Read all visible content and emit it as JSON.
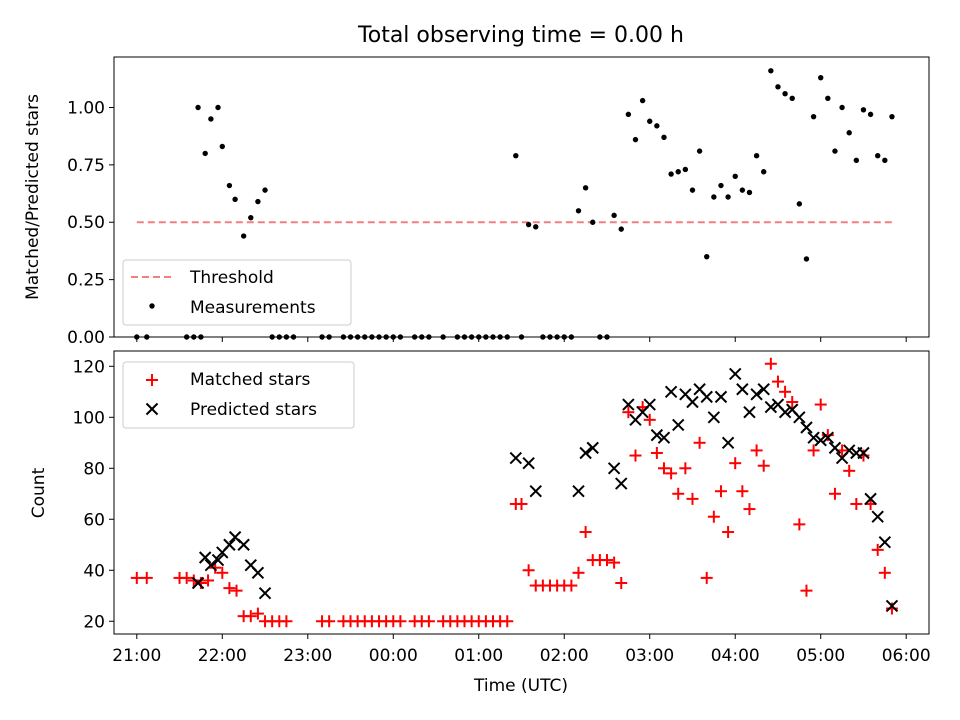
{
  "title": "Total observing time = 0.00 h",
  "xlabel": "Time (UTC)",
  "x_tick_labels": [
    "21:00",
    "22:00",
    "23:00",
    "00:00",
    "01:00",
    "02:00",
    "03:00",
    "04:00",
    "05:00",
    "06:00"
  ],
  "colors": {
    "threshold": "#f08080",
    "measurements": "#000000",
    "matched": "#ff0000",
    "predicted": "#000000"
  },
  "chart_data": [
    {
      "type": "scatter",
      "ylabel": "Matched/Predicted stars",
      "ylim": [
        0,
        1.22
      ],
      "xlim": [
        "20:44",
        "06:16"
      ],
      "grid": false,
      "legend": "lower-left",
      "y_ticks": [
        "0.00",
        "0.25",
        "0.50",
        "0.75",
        "1.00"
      ],
      "threshold": {
        "name": "Threshold",
        "value": 0.5,
        "x_range": [
          "21:00",
          "05:50"
        ]
      },
      "series": [
        {
          "name": "Measurements",
          "points": [
            [
              "21:00",
              0
            ],
            [
              "21:07",
              0
            ],
            [
              "21:35",
              0
            ],
            [
              "21:40",
              0
            ],
            [
              "21:45",
              0
            ],
            [
              "21:43",
              1.0
            ],
            [
              "21:48",
              0.8
            ],
            [
              "21:52",
              0.95
            ],
            [
              "21:57",
              1.0
            ],
            [
              "22:00",
              0.83
            ],
            [
              "22:05",
              0.66
            ],
            [
              "22:09",
              0.6
            ],
            [
              "22:15",
              0.44
            ],
            [
              "22:20",
              0.52
            ],
            [
              "22:25",
              0.59
            ],
            [
              "22:30",
              0.64
            ],
            [
              "22:35",
              0
            ],
            [
              "22:40",
              0
            ],
            [
              "22:45",
              0
            ],
            [
              "22:50",
              0
            ],
            [
              "23:10",
              0
            ],
            [
              "23:15",
              0
            ],
            [
              "23:25",
              0
            ],
            [
              "23:30",
              0
            ],
            [
              "23:35",
              0
            ],
            [
              "23:40",
              0
            ],
            [
              "23:45",
              0
            ],
            [
              "23:50",
              0
            ],
            [
              "23:55",
              0
            ],
            [
              "00:00",
              0
            ],
            [
              "00:05",
              0
            ],
            [
              "00:15",
              0
            ],
            [
              "00:20",
              0
            ],
            [
              "00:25",
              0
            ],
            [
              "00:35",
              0
            ],
            [
              "00:45",
              0
            ],
            [
              "00:50",
              0
            ],
            [
              "00:55",
              0
            ],
            [
              "01:00",
              0
            ],
            [
              "01:05",
              0
            ],
            [
              "01:10",
              0
            ],
            [
              "01:15",
              0
            ],
            [
              "01:20",
              0
            ],
            [
              "01:26",
              0.79
            ],
            [
              "01:30",
              0
            ],
            [
              "01:35",
              0.49
            ],
            [
              "01:40",
              0.48
            ],
            [
              "01:45",
              0
            ],
            [
              "01:50",
              0
            ],
            [
              "01:55",
              0
            ],
            [
              "02:00",
              0
            ],
            [
              "02:05",
              0
            ],
            [
              "02:10",
              0.55
            ],
            [
              "02:15",
              0.65
            ],
            [
              "02:20",
              0.5
            ],
            [
              "02:25",
              0
            ],
            [
              "02:30",
              0
            ],
            [
              "02:35",
              0.53
            ],
            [
              "02:40",
              0.47
            ],
            [
              "02:45",
              0.97
            ],
            [
              "02:50",
              0.86
            ],
            [
              "02:55",
              1.03
            ],
            [
              "03:00",
              0.94
            ],
            [
              "03:05",
              0.92
            ],
            [
              "03:10",
              0.87
            ],
            [
              "03:15",
              0.71
            ],
            [
              "03:20",
              0.72
            ],
            [
              "03:25",
              0.73
            ],
            [
              "03:30",
              0.64
            ],
            [
              "03:35",
              0.81
            ],
            [
              "03:40",
              0.35
            ],
            [
              "03:45",
              0.61
            ],
            [
              "03:50",
              0.66
            ],
            [
              "03:55",
              0.61
            ],
            [
              "04:00",
              0.7
            ],
            [
              "04:05",
              0.64
            ],
            [
              "04:10",
              0.63
            ],
            [
              "04:15",
              0.79
            ],
            [
              "04:20",
              0.72
            ],
            [
              "04:25",
              1.16
            ],
            [
              "04:30",
              1.09
            ],
            [
              "04:35",
              1.06
            ],
            [
              "04:40",
              1.04
            ],
            [
              "04:45",
              0.58
            ],
            [
              "04:50",
              0.34
            ],
            [
              "04:55",
              0.96
            ],
            [
              "05:00",
              1.13
            ],
            [
              "05:05",
              1.04
            ],
            [
              "05:10",
              0.81
            ],
            [
              "05:15",
              1.0
            ],
            [
              "05:20",
              0.89
            ],
            [
              "05:25",
              0.77
            ],
            [
              "05:30",
              0.99
            ],
            [
              "05:35",
              0.97
            ],
            [
              "05:40",
              0.79
            ],
            [
              "05:45",
              0.77
            ],
            [
              "05:50",
              0.96
            ]
          ]
        }
      ]
    },
    {
      "type": "scatter",
      "ylabel": "Count",
      "ylim": [
        15,
        126
      ],
      "xlim": [
        "20:44",
        "06:16"
      ],
      "grid": false,
      "legend": "top-left",
      "y_ticks": [
        "20",
        "40",
        "60",
        "80",
        "100",
        "120"
      ],
      "series": [
        {
          "name": "Matched stars",
          "marker": "plus",
          "points": [
            [
              "21:00",
              37
            ],
            [
              "21:07",
              37
            ],
            [
              "21:30",
              37
            ],
            [
              "21:35",
              37
            ],
            [
              "21:40",
              36
            ],
            [
              "21:45",
              35
            ],
            [
              "21:50",
              36
            ],
            [
              "21:55",
              41
            ],
            [
              "22:00",
              39
            ],
            [
              "22:05",
              33
            ],
            [
              "22:10",
              32
            ],
            [
              "22:15",
              22
            ],
            [
              "22:20",
              22
            ],
            [
              "22:25",
              23
            ],
            [
              "22:30",
              20
            ],
            [
              "22:35",
              20
            ],
            [
              "22:40",
              20
            ],
            [
              "22:45",
              20
            ],
            [
              "23:10",
              20
            ],
            [
              "23:15",
              20
            ],
            [
              "23:25",
              20
            ],
            [
              "23:30",
              20
            ],
            [
              "23:35",
              20
            ],
            [
              "23:40",
              20
            ],
            [
              "23:45",
              20
            ],
            [
              "23:50",
              20
            ],
            [
              "23:55",
              20
            ],
            [
              "00:00",
              20
            ],
            [
              "00:05",
              20
            ],
            [
              "00:15",
              20
            ],
            [
              "00:20",
              20
            ],
            [
              "00:25",
              20
            ],
            [
              "00:35",
              20
            ],
            [
              "00:40",
              20
            ],
            [
              "00:45",
              20
            ],
            [
              "00:50",
              20
            ],
            [
              "00:55",
              20
            ],
            [
              "01:00",
              20
            ],
            [
              "01:05",
              20
            ],
            [
              "01:10",
              20
            ],
            [
              "01:15",
              20
            ],
            [
              "01:20",
              20
            ],
            [
              "01:26",
              66
            ],
            [
              "01:30",
              66
            ],
            [
              "01:35",
              40
            ],
            [
              "01:40",
              34
            ],
            [
              "01:45",
              34
            ],
            [
              "01:50",
              34
            ],
            [
              "01:55",
              34
            ],
            [
              "02:00",
              34
            ],
            [
              "02:05",
              34
            ],
            [
              "02:10",
              39
            ],
            [
              "02:15",
              55
            ],
            [
              "02:20",
              44
            ],
            [
              "02:25",
              44
            ],
            [
              "02:30",
              44
            ],
            [
              "02:35",
              43
            ],
            [
              "02:40",
              35
            ],
            [
              "02:45",
              102
            ],
            [
              "02:50",
              85
            ],
            [
              "02:55",
              104
            ],
            [
              "03:00",
              99
            ],
            [
              "03:05",
              86
            ],
            [
              "03:10",
              80
            ],
            [
              "03:15",
              78
            ],
            [
              "03:20",
              70
            ],
            [
              "03:25",
              80
            ],
            [
              "03:30",
              68
            ],
            [
              "03:35",
              90
            ],
            [
              "03:40",
              37
            ],
            [
              "03:45",
              61
            ],
            [
              "03:50",
              71
            ],
            [
              "03:55",
              55
            ],
            [
              "04:00",
              82
            ],
            [
              "04:05",
              71
            ],
            [
              "04:10",
              64
            ],
            [
              "04:15",
              87
            ],
            [
              "04:20",
              81
            ],
            [
              "04:25",
              121
            ],
            [
              "04:30",
              114
            ],
            [
              "04:35",
              110
            ],
            [
              "04:40",
              106
            ],
            [
              "04:45",
              58
            ],
            [
              "04:50",
              32
            ],
            [
              "04:55",
              87
            ],
            [
              "05:00",
              105
            ],
            [
              "05:05",
              93
            ],
            [
              "05:10",
              70
            ],
            [
              "05:15",
              87
            ],
            [
              "05:20",
              79
            ],
            [
              "05:25",
              66
            ],
            [
              "05:30",
              85
            ],
            [
              "05:35",
              66
            ],
            [
              "05:40",
              48
            ],
            [
              "05:45",
              39
            ],
            [
              "05:50",
              25
            ]
          ]
        },
        {
          "name": "Predicted stars",
          "marker": "x",
          "points": [
            [
              "21:43",
              35
            ],
            [
              "21:48",
              45
            ],
            [
              "21:52",
              42
            ],
            [
              "21:57",
              44
            ],
            [
              "22:00",
              47
            ],
            [
              "22:05",
              50
            ],
            [
              "22:09",
              53
            ],
            [
              "22:15",
              50
            ],
            [
              "22:20",
              42
            ],
            [
              "22:25",
              39
            ],
            [
              "22:30",
              31
            ],
            [
              "01:26",
              84
            ],
            [
              "01:35",
              82
            ],
            [
              "01:40",
              71
            ],
            [
              "02:10",
              71
            ],
            [
              "02:15",
              86
            ],
            [
              "02:20",
              88
            ],
            [
              "02:35",
              80
            ],
            [
              "02:40",
              74
            ],
            [
              "02:45",
              105
            ],
            [
              "02:50",
              99
            ],
            [
              "02:55",
              102
            ],
            [
              "03:00",
              105
            ],
            [
              "03:05",
              93
            ],
            [
              "03:10",
              92
            ],
            [
              "03:15",
              110
            ],
            [
              "03:20",
              97
            ],
            [
              "03:25",
              109
            ],
            [
              "03:30",
              106
            ],
            [
              "03:35",
              111
            ],
            [
              "03:40",
              108
            ],
            [
              "03:45",
              100
            ],
            [
              "03:50",
              108
            ],
            [
              "03:55",
              90
            ],
            [
              "04:00",
              117
            ],
            [
              "04:05",
              111
            ],
            [
              "04:10",
              102
            ],
            [
              "04:15",
              109
            ],
            [
              "04:20",
              111
            ],
            [
              "04:25",
              104
            ],
            [
              "04:30",
              105
            ],
            [
              "04:35",
              102
            ],
            [
              "04:40",
              103
            ],
            [
              "04:45",
              100
            ],
            [
              "04:50",
              96
            ],
            [
              "04:55",
              92
            ],
            [
              "05:00",
              91
            ],
            [
              "05:05",
              92
            ],
            [
              "05:10",
              88
            ],
            [
              "05:15",
              84
            ],
            [
              "05:20",
              87
            ],
            [
              "05:25",
              86
            ],
            [
              "05:30",
              86
            ],
            [
              "05:35",
              68
            ],
            [
              "05:40",
              61
            ],
            [
              "05:45",
              51
            ],
            [
              "05:50",
              26
            ]
          ]
        }
      ]
    }
  ]
}
